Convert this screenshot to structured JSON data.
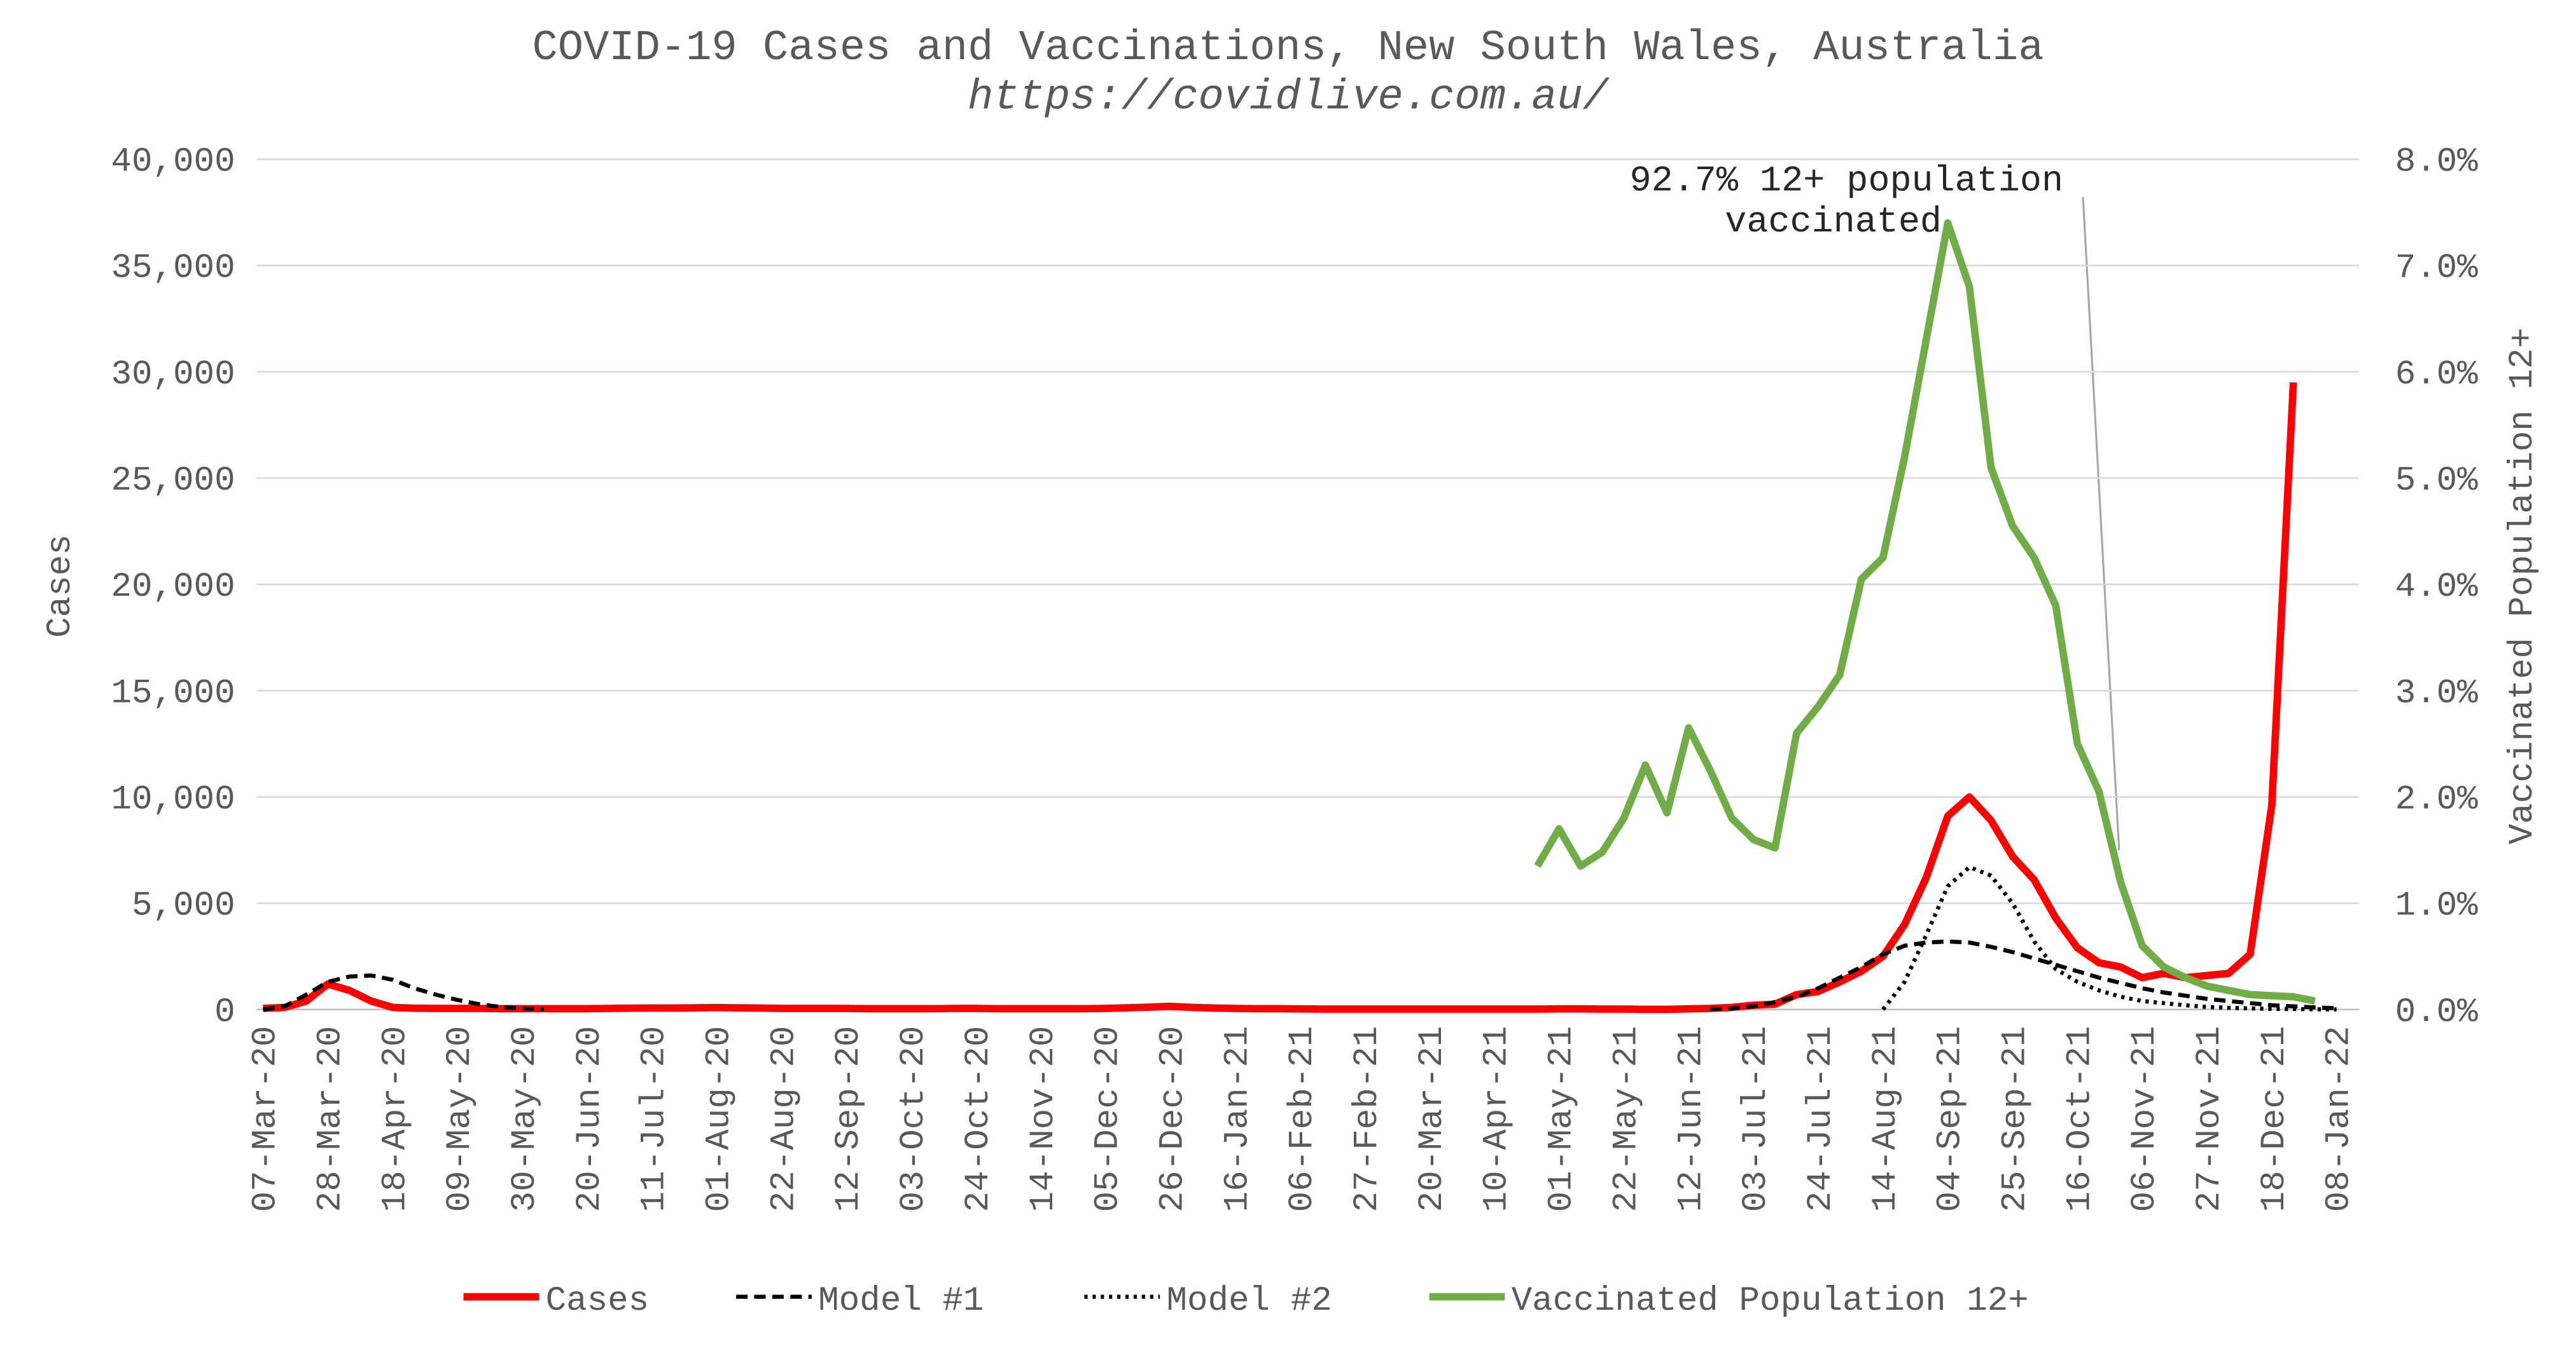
{
  "chart_data": {
    "type": "line",
    "title": "COVID-19 Cases and Vaccinations, New South Wales, Australia",
    "subtitle": "https://covidlive.com.au/",
    "y_label": "Cases",
    "y2_label": "Vaccinated Population 12+",
    "annotation": [
      "92.7% 12+ population",
      "vaccinated"
    ],
    "categories": [
      "07-Mar-20",
      null,
      null,
      "28-Mar-20",
      null,
      null,
      "18-Apr-20",
      null,
      null,
      "09-May-20",
      null,
      null,
      "30-May-20",
      null,
      null,
      "20-Jun-20",
      null,
      null,
      "11-Jul-20",
      null,
      null,
      "01-Aug-20",
      null,
      null,
      "22-Aug-20",
      null,
      null,
      "12-Sep-20",
      null,
      null,
      "03-Oct-20",
      null,
      null,
      "24-Oct-20",
      null,
      null,
      "14-Nov-20",
      null,
      null,
      "05-Dec-20",
      null,
      null,
      "26-Dec-20",
      null,
      null,
      "16-Jan-21",
      null,
      null,
      "06-Feb-21",
      null,
      null,
      "27-Feb-21",
      null,
      null,
      "20-Mar-21",
      null,
      null,
      "10-Apr-21",
      null,
      null,
      "01-May-21",
      null,
      null,
      "22-May-21",
      null,
      null,
      "12-Jun-21",
      null,
      null,
      "03-Jul-21",
      null,
      null,
      "24-Jul-21",
      null,
      null,
      "14-Aug-21",
      null,
      null,
      "04-Sep-21",
      null,
      null,
      "25-Sep-21",
      null,
      null,
      "16-Oct-21",
      null,
      null,
      "06-Nov-21",
      null,
      null,
      "27-Nov-21",
      null,
      null,
      "18-Dec-21",
      null,
      null,
      "08-Jan-22"
    ],
    "series": [
      {
        "name": "Cases",
        "color": "#ff0000",
        "line_style": "solid",
        "values": [
          50,
          100,
          400,
          1200,
          900,
          400,
          100,
          60,
          50,
          50,
          50,
          40,
          40,
          40,
          40,
          40,
          50,
          60,
          70,
          70,
          80,
          90,
          80,
          70,
          50,
          50,
          50,
          50,
          40,
          40,
          40,
          40,
          50,
          50,
          40,
          40,
          40,
          40,
          40,
          50,
          80,
          110,
          150,
          100,
          70,
          50,
          40,
          40,
          30,
          20,
          20,
          20,
          20,
          20,
          20,
          20,
          20,
          20,
          20,
          20,
          30,
          30,
          20,
          20,
          10,
          10,
          30,
          50,
          100,
          200,
          250,
          700,
          850,
          1300,
          1800,
          2500,
          4000,
          6200,
          9100,
          10000,
          8900,
          7200,
          6100,
          4300,
          2900,
          2200,
          2000,
          1500,
          1700,
          1500,
          1600,
          1700,
          2600,
          9600,
          29500,
          null,
          null
        ]
      },
      {
        "name": "Model #1",
        "color": "#000000",
        "line_style": "dashed",
        "values": [
          0,
          150,
          700,
          1300,
          1550,
          1600,
          1400,
          1000,
          700,
          450,
          250,
          120,
          50,
          20,
          null,
          null,
          null,
          null,
          null,
          null,
          null,
          null,
          null,
          null,
          null,
          null,
          null,
          null,
          null,
          null,
          null,
          null,
          null,
          null,
          null,
          null,
          null,
          null,
          null,
          null,
          null,
          null,
          null,
          null,
          null,
          null,
          null,
          null,
          null,
          null,
          null,
          null,
          null,
          null,
          null,
          null,
          null,
          null,
          null,
          null,
          null,
          null,
          null,
          null,
          null,
          null,
          null,
          20,
          50,
          150,
          350,
          600,
          1000,
          1500,
          2000,
          2600,
          3000,
          3150,
          3200,
          3150,
          2950,
          2700,
          2400,
          2100,
          1800,
          1500,
          1250,
          1000,
          800,
          650,
          500,
          400,
          300,
          200,
          150,
          100,
          60
        ]
      },
      {
        "name": "Model #2",
        "color": "#000000",
        "line_style": "dotted",
        "values": [
          null,
          null,
          null,
          null,
          null,
          null,
          null,
          null,
          null,
          null,
          null,
          null,
          null,
          null,
          null,
          null,
          null,
          null,
          null,
          null,
          null,
          null,
          null,
          null,
          null,
          null,
          null,
          null,
          null,
          null,
          null,
          null,
          null,
          null,
          null,
          null,
          null,
          null,
          null,
          null,
          null,
          null,
          null,
          null,
          null,
          null,
          null,
          null,
          null,
          null,
          null,
          null,
          null,
          null,
          null,
          null,
          null,
          null,
          null,
          null,
          null,
          null,
          null,
          null,
          null,
          null,
          null,
          null,
          null,
          null,
          null,
          null,
          null,
          null,
          null,
          0,
          1300,
          3500,
          5800,
          6700,
          6300,
          5000,
          3200,
          1900,
          1300,
          900,
          600,
          400,
          300,
          200,
          120,
          80,
          50,
          30,
          20,
          10,
          5
        ]
      },
      {
        "name": "Vaccinated Population 12+",
        "color": "#70ad47",
        "line_style": "solid",
        "axis": "y2",
        "values": [
          null,
          null,
          null,
          null,
          null,
          null,
          null,
          null,
          null,
          null,
          null,
          null,
          null,
          null,
          null,
          null,
          null,
          null,
          null,
          null,
          null,
          null,
          null,
          null,
          null,
          null,
          null,
          null,
          null,
          null,
          null,
          null,
          null,
          null,
          null,
          null,
          null,
          null,
          null,
          null,
          null,
          null,
          null,
          null,
          null,
          null,
          null,
          null,
          null,
          null,
          null,
          null,
          null,
          null,
          null,
          null,
          null,
          null,
          null,
          1.35,
          1.7,
          1.35,
          1.48,
          1.8,
          2.3,
          1.85,
          2.65,
          2.25,
          1.8,
          1.6,
          1.52,
          2.6,
          2.85,
          3.15,
          4.05,
          4.25,
          5.2,
          6.3,
          7.4,
          6.8,
          5.1,
          4.55,
          4.25,
          3.8,
          2.5,
          2.05,
          1.2,
          0.6,
          0.4,
          0.3,
          0.22,
          0.18,
          0.14,
          0.13,
          0.12,
          0.08,
          null
        ]
      }
    ],
    "ylim": [
      0,
      40000
    ],
    "yticks": [
      0,
      {
        "value": 5000,
        "label": "5,000"
      },
      {
        "value": 10000,
        "label": "10,000"
      },
      {
        "value": 15000,
        "label": "15,000"
      },
      {
        "value": 20000,
        "label": "20,000"
      },
      {
        "value": 25000,
        "label": "25,000"
      },
      {
        "value": 30000,
        "label": "30,000"
      },
      {
        "value": 35000,
        "label": "35,000"
      },
      {
        "value": 40000,
        "label": "40,000"
      }
    ],
    "y2lim": [
      0,
      8
    ],
    "y2ticks": [
      {
        "value": 0,
        "label": "0.0%"
      },
      {
        "value": 1,
        "label": "1.0%"
      },
      {
        "value": 2,
        "label": "2.0%"
      },
      {
        "value": 3,
        "label": "3.0%"
      },
      {
        "value": 4,
        "label": "4.0%"
      },
      {
        "value": 5,
        "label": "5.0%"
      },
      {
        "value": 6,
        "label": "6.0%"
      },
      {
        "value": 7,
        "label": "7.0%"
      },
      {
        "value": 8,
        "label": "8.0%"
      }
    ],
    "grid": true,
    "legend": "bottom"
  }
}
